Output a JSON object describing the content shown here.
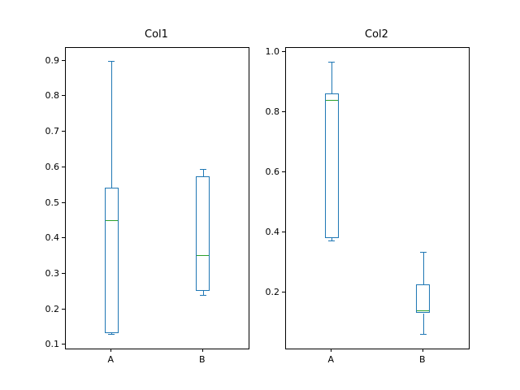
{
  "colors": {
    "box": "#1f77b4",
    "median": "#2ca02c",
    "axis": "#000000",
    "text": "#000000",
    "background": "#ffffff"
  },
  "chart_data": [
    {
      "type": "boxplot",
      "title": "Col1",
      "categories": [
        "A",
        "B"
      ],
      "xlabel": "",
      "ylabel": "",
      "ylim": [
        0.0895,
        0.9355
      ],
      "yticks": [
        0.1,
        0.2,
        0.3,
        0.4,
        0.5,
        0.6,
        0.7,
        0.8,
        0.9
      ],
      "grid": false,
      "boxes": [
        {
          "category": "A",
          "whislo": 0.13,
          "q1": 0.133,
          "med": 0.452,
          "q3": 0.542,
          "whishi": 0.898
        },
        {
          "category": "B",
          "whislo": 0.241,
          "q1": 0.251,
          "med": 0.353,
          "q3": 0.575,
          "whishi": 0.596
        }
      ]
    },
    {
      "type": "boxplot",
      "title": "Col2",
      "categories": [
        "A",
        "B"
      ],
      "xlabel": "",
      "ylabel": "",
      "ylim": [
        0.0125,
        1.0125
      ],
      "yticks": [
        0.2,
        0.4,
        0.6,
        0.8,
        1.0
      ],
      "grid": false,
      "boxes": [
        {
          "category": "A",
          "whislo": 0.373,
          "q1": 0.381,
          "med": 0.84,
          "q3": 0.862,
          "whishi": 0.968
        },
        {
          "category": "B",
          "whislo": 0.06,
          "q1": 0.13,
          "med": 0.141,
          "q3": 0.227,
          "whishi": 0.335
        }
      ]
    }
  ]
}
